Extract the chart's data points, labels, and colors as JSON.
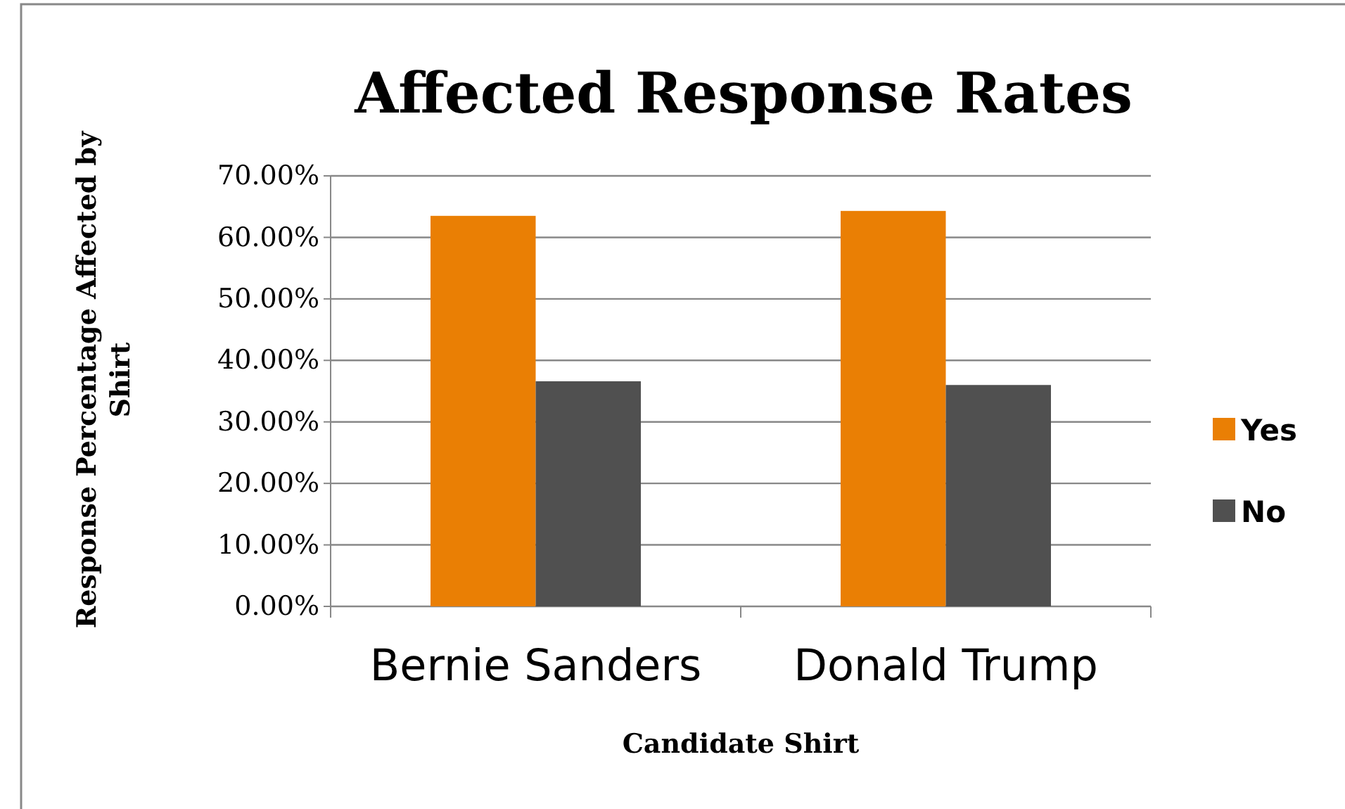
{
  "chart_data": {
    "type": "bar",
    "title": "Affected Response Rates",
    "xlabel": "Candidate Shirt",
    "ylabel": "Response Percentage Affected by Shirt",
    "categories": [
      "Bernie Sanders",
      "Donald Trump"
    ],
    "series": [
      {
        "name": "Yes",
        "color": "#ea7f04",
        "values": [
          63.5,
          64.3
        ]
      },
      {
        "name": "No",
        "color": "#505050",
        "values": [
          36.6,
          36.0
        ]
      }
    ],
    "ylim": [
      0,
      70
    ],
    "yticks": [
      {
        "value": 0,
        "label": "0.00%"
      },
      {
        "value": 10,
        "label": "10.00%"
      },
      {
        "value": 20,
        "label": "20.00%"
      },
      {
        "value": 30,
        "label": "30.00%"
      },
      {
        "value": 40,
        "label": "40.00%"
      },
      {
        "value": 50,
        "label": "50.00%"
      },
      {
        "value": 60,
        "label": "60.00%"
      },
      {
        "value": 70,
        "label": "70.00%"
      }
    ],
    "grid": "y",
    "legend": "right"
  }
}
